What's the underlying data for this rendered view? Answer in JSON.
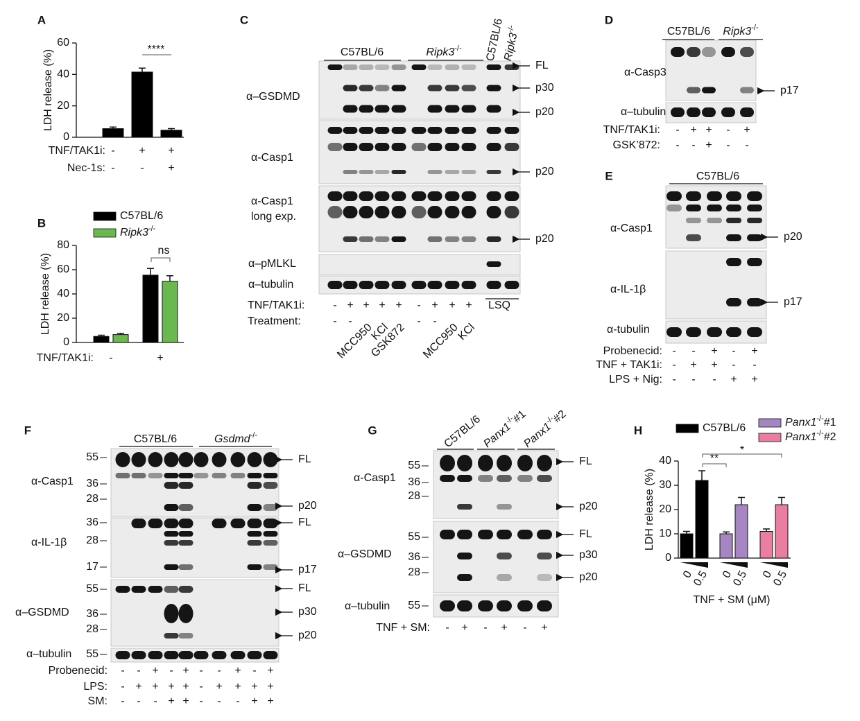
{
  "chart_data": [
    {
      "panel": "A",
      "type": "bar",
      "ylabel": "LDH release (%)",
      "ylim": [
        0,
        60
      ],
      "yticks": [
        0,
        20,
        40,
        60
      ],
      "series": [
        {
          "color": "#000000",
          "values": [
            5.5,
            41.5,
            4.5
          ],
          "errors": [
            1,
            2.5,
            1
          ]
        }
      ],
      "conditions": [
        {
          "label": "TNF/TAK1i:",
          "values": [
            "-",
            "+",
            "+"
          ]
        },
        {
          "label": "Nec-1s:",
          "values": [
            "-",
            "-",
            "+"
          ]
        }
      ],
      "annotations": [
        {
          "text": "****"
        }
      ]
    },
    {
      "panel": "B",
      "type": "bar",
      "ylabel": "LDH release (%)",
      "xlabel": "TNF/TAK1i:",
      "categories": [
        "-",
        "+"
      ],
      "ylim": [
        0,
        80
      ],
      "yticks": [
        0,
        20,
        40,
        60,
        80
      ],
      "series": [
        {
          "name": "C57BL/6",
          "color": "#000000",
          "values": [
            5,
            55.5
          ],
          "errors": [
            1,
            5.5
          ]
        },
        {
          "name": "Ripk3-/-",
          "color": "#6ab84f",
          "values": [
            6.5,
            50.5
          ],
          "errors": [
            1,
            4.5
          ]
        }
      ],
      "annotations": [
        {
          "text": "ns"
        }
      ]
    },
    {
      "panel": "H",
      "type": "bar",
      "ylabel": "LDH release (%)",
      "xlabel": "TNF + SM (μM)",
      "categories": [
        "0",
        "0.5"
      ],
      "ylim": [
        0,
        40
      ],
      "yticks": [
        0,
        10,
        20,
        30,
        40
      ],
      "series": [
        {
          "name": "C57BL/6",
          "color": "#000000",
          "values": [
            10,
            32
          ],
          "errors": [
            1,
            4
          ]
        },
        {
          "name": "Panx1-/-#1",
          "color": "#a585c2",
          "values": [
            10,
            22
          ],
          "errors": [
            0.8,
            3
          ]
        },
        {
          "name": "Panx1-/-#2",
          "color": "#e97ea0",
          "values": [
            11,
            22
          ],
          "errors": [
            1,
            3
          ]
        }
      ],
      "annotations": [
        {
          "text": "**"
        },
        {
          "text": "*"
        }
      ]
    }
  ],
  "blots": [
    {
      "panel": "C",
      "groups": [
        "C57BL/6",
        "Ripk3-/-",
        "C57BL/6",
        "Ripk3-/-"
      ],
      "rows": [
        {
          "antibody": "α–GSDMD",
          "bands": [
            "FL",
            "p30",
            "p20"
          ]
        },
        {
          "antibody": "α-Casp1",
          "bands": [
            "p20"
          ]
        },
        {
          "antibody": "α-Casp1",
          "note": "long exp.",
          "bands": [
            "p20"
          ]
        },
        {
          "antibody": "α–pMLKL"
        },
        {
          "antibody": "α–tubulin"
        }
      ],
      "conditions": [
        {
          "label": "TNF/TAK1i:",
          "values": [
            "-",
            "+",
            "+",
            "+",
            "+",
            "-",
            "+",
            "+",
            "+"
          ]
        },
        {
          "label": "Treatment:",
          "values": [
            "-",
            "-",
            "MCC950",
            "KCl",
            "GSK872",
            "-",
            "-",
            "MCC950",
            "KCl"
          ]
        }
      ],
      "lsq": "LSQ"
    },
    {
      "panel": "D",
      "groups": [
        "C57BL/6",
        "Ripk3-/-"
      ],
      "rows": [
        {
          "antibody": "α-Casp3",
          "bands": [
            "p17"
          ]
        },
        {
          "antibody": "α–tubulin"
        }
      ],
      "conditions": [
        {
          "label": "TNF/TAK1i:",
          "values": [
            "-",
            "+",
            "+",
            "-",
            "+"
          ]
        },
        {
          "label": "GSK’872:",
          "values": [
            "-",
            "-",
            "+",
            "-",
            "-"
          ]
        }
      ]
    },
    {
      "panel": "E",
      "groups": [
        "C57BL/6"
      ],
      "rows": [
        {
          "antibody": "α-Casp1",
          "bands": [
            "p20"
          ]
        },
        {
          "antibody": "α-IL-1β",
          "bands": [
            "p17"
          ]
        },
        {
          "antibody": "α-tubulin"
        }
      ],
      "conditions": [
        {
          "label": "Probenecid:",
          "values": [
            "-",
            "-",
            "+",
            "-",
            "+"
          ]
        },
        {
          "label": "TNF + TAK1i:",
          "values": [
            "-",
            "+",
            "+",
            "-",
            "-"
          ]
        },
        {
          "label": "LPS + Nig:",
          "values": [
            "-",
            "-",
            "-",
            "+",
            "+"
          ]
        }
      ]
    },
    {
      "panel": "F",
      "groups": [
        "C57BL/6",
        "Gsdmd-/-"
      ],
      "rows": [
        {
          "antibody": "α-Casp1",
          "markers": [
            55,
            36,
            28
          ],
          "bands": [
            "FL",
            "p20"
          ]
        },
        {
          "antibody": "α-IL-1β",
          "markers": [
            36,
            28,
            17
          ],
          "bands": [
            "FL",
            "p17"
          ]
        },
        {
          "antibody": "α–GSDMD",
          "markers": [
            55,
            36,
            28
          ],
          "bands": [
            "FL",
            "p30",
            "p20"
          ]
        },
        {
          "antibody": "α–tubulin",
          "markers": [
            55
          ]
        }
      ],
      "conditions": [
        {
          "label": "Probenecid:",
          "values": [
            "-",
            "-",
            "+",
            "-",
            "+",
            "-",
            "-",
            "+",
            "-",
            "+"
          ]
        },
        {
          "label": "LPS:",
          "values": [
            "-",
            "+",
            "+",
            "+",
            "+",
            "-",
            "+",
            "+",
            "+",
            "+"
          ]
        },
        {
          "label": "SM:",
          "values": [
            "-",
            "-",
            "-",
            "+",
            "+",
            "-",
            "-",
            "-",
            "+",
            "+"
          ]
        }
      ]
    },
    {
      "panel": "G",
      "groups": [
        "C57BL/6",
        "Panx1-/-#1",
        "Panx1-/-#2"
      ],
      "rows": [
        {
          "antibody": "α-Casp1",
          "markers": [
            55,
            36,
            28
          ],
          "bands": [
            "FL",
            "p20"
          ]
        },
        {
          "antibody": "α–GSDMD",
          "markers": [
            55,
            36,
            28
          ],
          "bands": [
            "FL",
            "p30",
            "p20"
          ]
        },
        {
          "antibody": "α–tubulin",
          "markers": [
            55
          ]
        }
      ],
      "conditions": [
        {
          "label": "TNF + SM:",
          "values": [
            "-",
            "+",
            "-",
            "+",
            "-",
            "+"
          ]
        }
      ]
    }
  ]
}
